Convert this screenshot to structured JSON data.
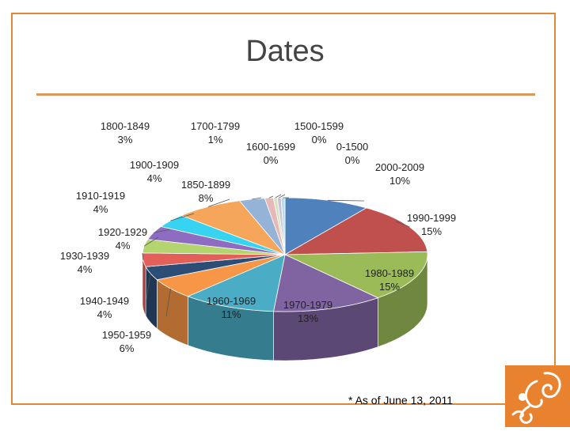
{
  "slide": {
    "title": "Dates",
    "footnote": "* As of June 13, 2011",
    "logo_icon": "decorative-swirl-logo",
    "frame_color": "#e08a35"
  },
  "chart_data": {
    "type": "pie",
    "title": "Dates",
    "style": "3d-exploded",
    "slices": [
      {
        "label": "2000-2009",
        "value": 10,
        "pct_label": "10%",
        "color": "#4f81bd"
      },
      {
        "label": "1990-1999",
        "value": 15,
        "pct_label": "15%",
        "color": "#c0504d"
      },
      {
        "label": "1980-1989",
        "value": 15,
        "pct_label": "15%",
        "color": "#9bbb59"
      },
      {
        "label": "1970-1979",
        "value": 13,
        "pct_label": "13%",
        "color": "#8064a2"
      },
      {
        "label": "1960-1969",
        "value": 11,
        "pct_label": "11%",
        "color": "#4bacc6"
      },
      {
        "label": "1950-1959",
        "value": 6,
        "pct_label": "6%",
        "color": "#f79646"
      },
      {
        "label": "1940-1949",
        "value": 4,
        "pct_label": "4%",
        "color": "#2c4d75"
      },
      {
        "label": "1930-1939",
        "value": 4,
        "pct_label": "4%",
        "color": "#e35f5a"
      },
      {
        "label": "1920-1929",
        "value": 4,
        "pct_label": "4%",
        "color": "#b3d46f"
      },
      {
        "label": "1910-1919",
        "value": 4,
        "pct_label": "4%",
        "color": "#8e6cc2"
      },
      {
        "label": "1900-1909",
        "value": 4,
        "pct_label": "4%",
        "color": "#37d3f0"
      },
      {
        "label": "1850-1899",
        "value": 8,
        "pct_label": "8%",
        "color": "#f5a65a"
      },
      {
        "label": "1800-1849",
        "value": 3,
        "pct_label": "3%",
        "color": "#95b3d7"
      },
      {
        "label": "1700-1799",
        "value": 1,
        "pct_label": "1%",
        "color": "#e6b9b8"
      },
      {
        "label": "1600-1699",
        "value": 0,
        "pct_label": "0%",
        "color": "#d7e4bd"
      },
      {
        "label": "1500-1599",
        "value": 0,
        "pct_label": "0%",
        "color": "#ccc1da"
      },
      {
        "label": "0-1500",
        "value": 0,
        "pct_label": "0%",
        "color": "#b7dee8"
      }
    ]
  }
}
